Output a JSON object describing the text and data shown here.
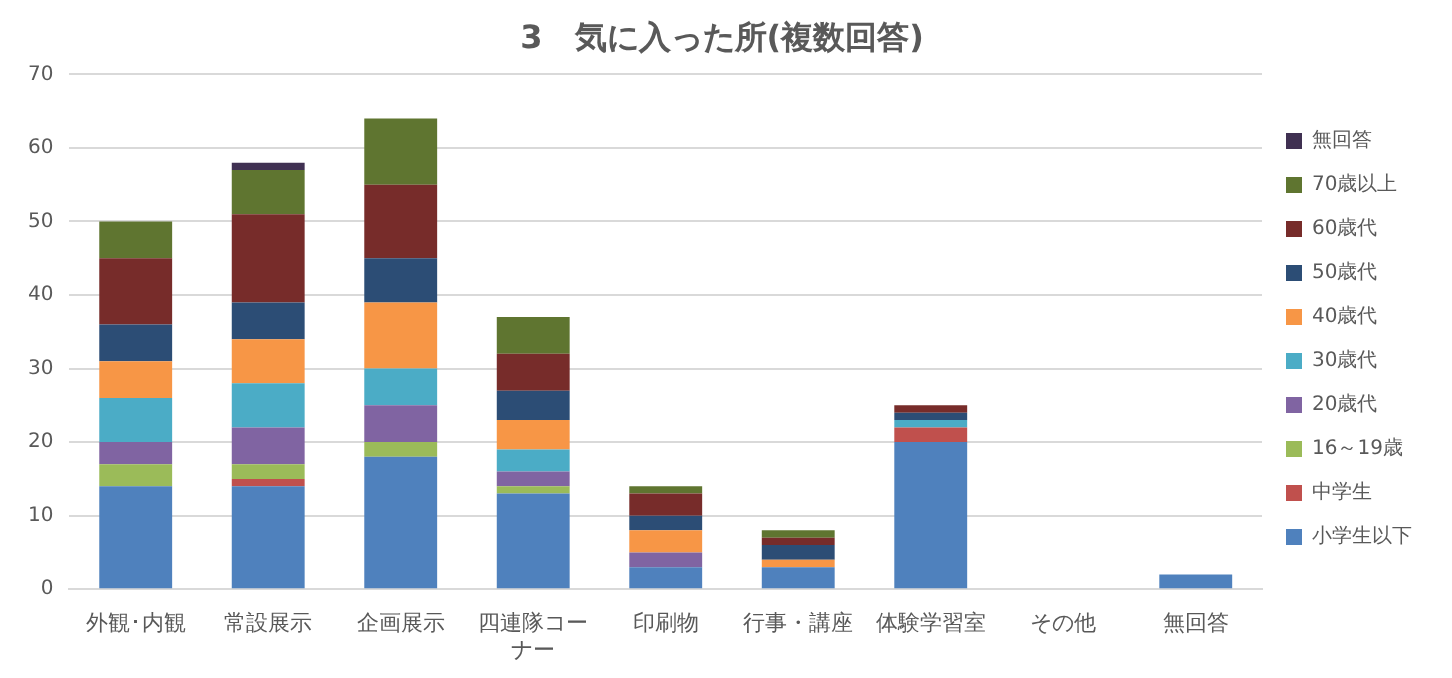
{
  "chart_data": {
    "type": "bar",
    "title": "3　気に入った所(複数回答)",
    "stacked": true,
    "categories": [
      "外観･内観",
      "常設展示",
      "企画展示",
      "四連隊コーナー",
      "印刷物",
      "行事・講座",
      "体験学習室",
      "その他",
      "無回答"
    ],
    "series": [
      {
        "name": "小学生以下",
        "color": "#4f81bd",
        "values": [
          14,
          14,
          18,
          13,
          3,
          3,
          20,
          0,
          2
        ]
      },
      {
        "name": "中学生",
        "color": "#c0504d",
        "values": [
          0,
          1,
          0,
          0,
          0,
          0,
          2,
          0,
          0
        ]
      },
      {
        "name": "16～19歳",
        "color": "#9bbb59",
        "values": [
          3,
          2,
          2,
          1,
          0,
          0,
          0,
          0,
          0
        ]
      },
      {
        "name": "20歳代",
        "color": "#8064a2",
        "values": [
          3,
          5,
          5,
          2,
          2,
          0,
          0,
          0,
          0
        ]
      },
      {
        "name": "30歳代",
        "color": "#4bacc6",
        "values": [
          6,
          6,
          5,
          3,
          0,
          0,
          1,
          0,
          0
        ]
      },
      {
        "name": "40歳代",
        "color": "#f79646",
        "values": [
          5,
          6,
          9,
          4,
          3,
          1,
          0,
          0,
          0
        ]
      },
      {
        "name": "50歳代",
        "color": "#2c4d75",
        "values": [
          5,
          5,
          6,
          4,
          2,
          2,
          1,
          0,
          0
        ]
      },
      {
        "name": "60歳代",
        "color": "#772c2a",
        "values": [
          9,
          12,
          10,
          5,
          3,
          1,
          1,
          0,
          0
        ]
      },
      {
        "name": "70歳以上",
        "color": "#5f7530",
        "values": [
          5,
          6,
          9,
          5,
          1,
          1,
          0,
          0,
          0
        ]
      },
      {
        "name": "無回答",
        "color": "#403152",
        "values": [
          0,
          1,
          0,
          0,
          0,
          0,
          0,
          0,
          0
        ]
      }
    ],
    "ylim": [
      0,
      70
    ],
    "yticks": [
      0,
      10,
      20,
      30,
      40,
      50,
      60,
      70
    ],
    "grid": "y",
    "legend": "right"
  }
}
